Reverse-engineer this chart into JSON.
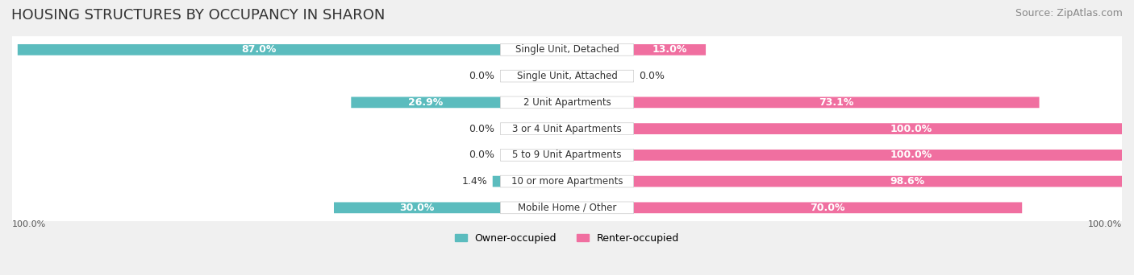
{
  "title": "HOUSING STRUCTURES BY OCCUPANCY IN SHARON",
  "source": "Source: ZipAtlas.com",
  "categories": [
    "Single Unit, Detached",
    "Single Unit, Attached",
    "2 Unit Apartments",
    "3 or 4 Unit Apartments",
    "5 to 9 Unit Apartments",
    "10 or more Apartments",
    "Mobile Home / Other"
  ],
  "owner_pct": [
    87.0,
    0.0,
    26.9,
    0.0,
    0.0,
    1.4,
    30.0
  ],
  "renter_pct": [
    13.0,
    0.0,
    73.1,
    100.0,
    100.0,
    98.6,
    70.0
  ],
  "owner_color": "#5bbcbe",
  "renter_color": "#f06fa0",
  "owner_label": "Owner-occupied",
  "renter_label": "Renter-occupied",
  "bg_color": "#f0f0f0",
  "row_bg_color": "#ffffff",
  "bar_bg_color": "#e8e8e8",
  "label_color_owner": "#ffffff",
  "label_color_renter": "#ffffff",
  "title_fontsize": 13,
  "source_fontsize": 9,
  "bar_label_fontsize": 9,
  "category_fontsize": 8.5,
  "xlim": [
    0,
    100
  ],
  "figsize": [
    14.06,
    3.42
  ],
  "dpi": 100
}
